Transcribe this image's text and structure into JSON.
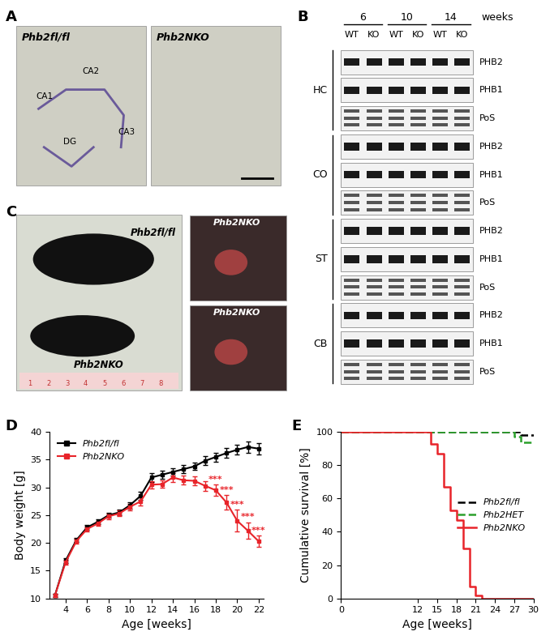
{
  "panels": {
    "A": {
      "label": "A",
      "images": [
        {
          "genotype": "Phb2fl/fl",
          "regions": [
            "CA1",
            "CA2",
            "DG",
            "CA3"
          ]
        },
        {
          "genotype": "Phb2NKO",
          "regions": []
        }
      ]
    },
    "B": {
      "label": "B",
      "ages": [
        "6",
        "10",
        "14"
      ],
      "age_unit": "weeks",
      "lanes": [
        "WT",
        "KO"
      ],
      "regions": [
        "HC",
        "CO",
        "ST",
        "CB"
      ],
      "rows": [
        "PHB2",
        "PHB1",
        "PoS"
      ]
    },
    "C": {
      "label": "C",
      "main_image": [
        "Phb2fl/fl",
        "Phb2NKO"
      ],
      "closeups": [
        "Phb2NKO",
        "Phb2NKO"
      ],
      "ruler": [
        "1",
        "2",
        "3",
        "4",
        "5",
        "6",
        "7",
        "8"
      ]
    }
  },
  "chart_data": [
    {
      "panel_label": "D",
      "type": "line",
      "x_label": "Age [weeks]",
      "y_label": "Body weight [g]",
      "x": [
        3,
        4,
        5,
        6,
        7,
        8,
        9,
        10,
        11,
        12,
        13,
        14,
        15,
        16,
        17,
        18,
        19,
        20,
        21,
        22
      ],
      "series": [
        {
          "name": "Phb2fl/fl",
          "color": "#000000",
          "marker": "square",
          "values": [
            10.5,
            16.8,
            20.5,
            22.8,
            23.8,
            25.0,
            25.5,
            26.8,
            28.5,
            31.8,
            32.3,
            32.8,
            33.3,
            33.8,
            34.8,
            35.5,
            36.2,
            36.8,
            37.3,
            37.0
          ],
          "errors": [
            0.3,
            0.4,
            0.4,
            0.4,
            0.4,
            0.5,
            0.5,
            0.6,
            0.7,
            0.8,
            0.7,
            0.7,
            0.7,
            0.7,
            0.8,
            0.8,
            0.9,
            0.9,
            1.0,
            1.0
          ]
        },
        {
          "name": "Phb2NKO",
          "color": "#e8242a",
          "marker": "square",
          "values": [
            10.5,
            16.5,
            20.3,
            22.5,
            23.5,
            24.8,
            25.3,
            26.5,
            27.5,
            30.5,
            30.6,
            31.8,
            31.3,
            31.2,
            30.3,
            29.5,
            27.3,
            24.0,
            22.2,
            20.3
          ],
          "errors": [
            0.3,
            0.4,
            0.4,
            0.4,
            0.4,
            0.5,
            0.5,
            0.6,
            0.7,
            0.7,
            0.7,
            0.8,
            0.8,
            0.8,
            0.9,
            1.0,
            1.3,
            2.0,
            1.5,
            1.0
          ]
        }
      ],
      "annotations": [
        {
          "x": 18,
          "text": "***",
          "series": "Phb2NKO"
        },
        {
          "x": 19,
          "text": "***",
          "series": "Phb2NKO"
        },
        {
          "x": 20,
          "text": "***",
          "series": "Phb2NKO"
        },
        {
          "x": 21,
          "text": "***",
          "series": "Phb2NKO"
        },
        {
          "x": 22,
          "text": "***",
          "series": "Phb2NKO"
        }
      ],
      "xlim": [
        2.5,
        22.5
      ],
      "ylim": [
        10,
        40
      ],
      "xticks": [
        4,
        6,
        8,
        10,
        12,
        14,
        16,
        18,
        20,
        22
      ],
      "yticks": [
        10,
        15,
        20,
        25,
        30,
        35,
        40
      ],
      "legend": "upper left"
    },
    {
      "panel_label": "E",
      "type": "line",
      "x_label": "Age [weeks]",
      "y_label": "Cumulative survival [%]",
      "series": [
        {
          "name": "Phb2fl/fl",
          "color": "#000000",
          "line_style": "dashed",
          "x": [
            0,
            28,
            30
          ],
          "values": [
            100,
            98,
            98
          ]
        },
        {
          "name": "Phb2HET",
          "color": "#2ca02c",
          "line_style": "dashed",
          "x": [
            0,
            27,
            28,
            30
          ],
          "values": [
            100,
            97,
            94,
            94
          ]
        },
        {
          "name": "Phb2NKO",
          "color": "#e8242a",
          "line_style": "solid",
          "x": [
            0,
            14,
            15,
            16,
            17,
            18,
            19,
            20,
            21,
            22,
            30
          ],
          "values": [
            100,
            93,
            87,
            67,
            53,
            47,
            30,
            7,
            2,
            0,
            0
          ]
        }
      ],
      "xlim": [
        0,
        30
      ],
      "ylim": [
        0,
        100
      ],
      "xticks": [
        0,
        12,
        15,
        18,
        21,
        24,
        27,
        30
      ],
      "yticks": [
        0,
        20,
        40,
        60,
        80,
        100
      ],
      "legend": "center right"
    }
  ]
}
